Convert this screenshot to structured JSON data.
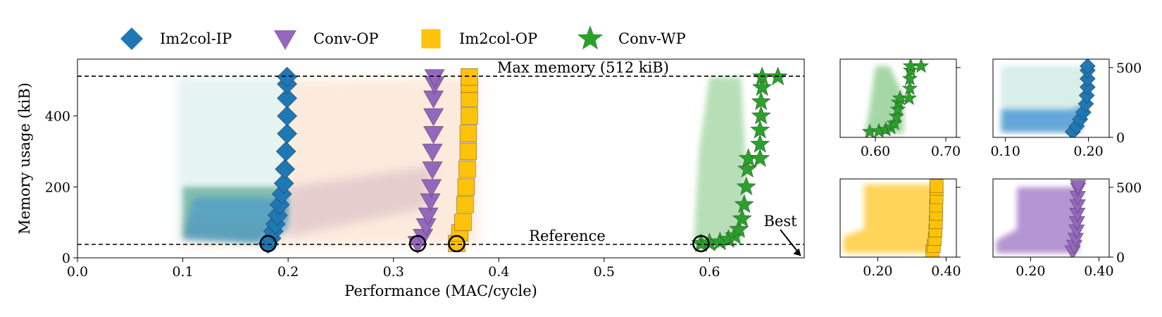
{
  "chart_data": [
    {
      "id": "main",
      "type": "scatter",
      "xlabel": "Performance (MAC/cycle)",
      "ylabel": "Memory usage (kiB)",
      "xlim": [
        0.0,
        0.69
      ],
      "ylim": [
        0,
        560
      ],
      "xticks": [
        0.0,
        0.1,
        0.2,
        0.3,
        0.4,
        0.5,
        0.6
      ],
      "xtick_labels": [
        "0.0",
        "0.1",
        "0.2",
        "0.3",
        "0.4",
        "0.5",
        "0.6"
      ],
      "yticks": [
        0,
        200,
        400
      ],
      "ytick_labels": [
        "0",
        "200",
        "400"
      ],
      "legend": {
        "placement": "top-outside"
      },
      "series": [
        {
          "name": "Im2col-IP",
          "marker": "diamond",
          "color": "#1f77b4",
          "pareto": [
            [
              0.181,
              40
            ],
            [
              0.184,
              55
            ],
            [
              0.186,
              75
            ],
            [
              0.188,
              95
            ],
            [
              0.19,
              120
            ],
            [
              0.192,
              150
            ],
            [
              0.194,
              180
            ],
            [
              0.196,
              210
            ],
            [
              0.197,
              250
            ],
            [
              0.198,
              300
            ],
            [
              0.199,
              350
            ],
            [
              0.199,
              400
            ],
            [
              0.199,
              450
            ],
            [
              0.199,
              490
            ],
            [
              0.199,
              510
            ]
          ]
        },
        {
          "name": "Conv-OP",
          "marker": "triangle-down",
          "color": "#9467bd",
          "pareto": [
            [
              0.323,
              40
            ],
            [
              0.328,
              60
            ],
            [
              0.331,
              90
            ],
            [
              0.333,
              120
            ],
            [
              0.335,
              160
            ],
            [
              0.336,
              200
            ],
            [
              0.337,
              250
            ],
            [
              0.337,
              300
            ],
            [
              0.338,
              350
            ],
            [
              0.338,
              400
            ],
            [
              0.338,
              450
            ],
            [
              0.339,
              490
            ],
            [
              0.339,
              510
            ]
          ]
        },
        {
          "name": "Im2col-OP",
          "marker": "square",
          "color": "#ffc20a",
          "pareto": [
            [
              0.36,
              40
            ],
            [
              0.363,
              70
            ],
            [
              0.366,
              100
            ],
            [
              0.368,
              150
            ],
            [
              0.369,
              200
            ],
            [
              0.37,
              250
            ],
            [
              0.371,
              300
            ],
            [
              0.371,
              350
            ],
            [
              0.372,
              400
            ],
            [
              0.372,
              450
            ],
            [
              0.372,
              490
            ],
            [
              0.372,
              510
            ]
          ]
        },
        {
          "name": "Conv-WP",
          "marker": "star",
          "color": "#2ca02c",
          "pareto": [
            [
              0.592,
              40
            ],
            [
              0.6,
              42
            ],
            [
              0.61,
              45
            ],
            [
              0.618,
              52
            ],
            [
              0.624,
              62
            ],
            [
              0.628,
              80
            ],
            [
              0.631,
              110
            ],
            [
              0.633,
              150
            ],
            [
              0.635,
              200
            ],
            [
              0.636,
              250
            ],
            [
              0.637,
              280
            ],
            [
              0.648,
              280
            ],
            [
              0.648,
              320
            ],
            [
              0.648,
              360
            ],
            [
              0.649,
              400
            ],
            [
              0.649,
              440
            ],
            [
              0.65,
              480
            ],
            [
              0.65,
              510
            ],
            [
              0.665,
              510
            ]
          ]
        }
      ],
      "reference_points": [
        [
          0.181,
          40
        ],
        [
          0.323,
          40
        ],
        [
          0.36,
          40
        ],
        [
          0.592,
          40
        ]
      ],
      "hlines": [
        {
          "y": 512,
          "label": "Max memory (512 kiB)"
        },
        {
          "y": 38,
          "label": "Reference"
        }
      ],
      "annotation": {
        "text": "Best",
        "arrow_to": [
          0.687,
          5
        ]
      }
    },
    {
      "id": "inset-conv-wp",
      "type": "scatter",
      "series_name": "Conv-WP",
      "xlim": [
        0.55,
        0.715
      ],
      "ylim": [
        0,
        560
      ],
      "xticks": [
        0.6,
        0.7
      ],
      "xtick_labels": [
        "0.60",
        "0.70"
      ],
      "yticks": [
        0,
        500
      ],
      "ytick_labels": [
        "",
        ""
      ],
      "pareto": [
        [
          0.592,
          40
        ],
        [
          0.605,
          45
        ],
        [
          0.615,
          55
        ],
        [
          0.622,
          70
        ],
        [
          0.627,
          100
        ],
        [
          0.63,
          150
        ],
        [
          0.632,
          200
        ],
        [
          0.633,
          250
        ],
        [
          0.635,
          280
        ],
        [
          0.648,
          280
        ],
        [
          0.649,
          350
        ],
        [
          0.649,
          420
        ],
        [
          0.65,
          480
        ],
        [
          0.65,
          510
        ],
        [
          0.665,
          510
        ]
      ]
    },
    {
      "id": "inset-im2col-ip",
      "type": "scatter",
      "series_name": "Im2col-IP",
      "xlim": [
        0.085,
        0.225
      ],
      "ylim": [
        0,
        560
      ],
      "xticks": [
        0.1,
        0.2
      ],
      "xtick_labels": [
        "0.10",
        "0.20"
      ],
      "yticks": [
        0,
        500
      ],
      "ytick_labels": [
        "0",
        "500"
      ],
      "pareto": [
        [
          0.181,
          40
        ],
        [
          0.186,
          80
        ],
        [
          0.19,
          130
        ],
        [
          0.194,
          180
        ],
        [
          0.197,
          240
        ],
        [
          0.198,
          300
        ],
        [
          0.199,
          360
        ],
        [
          0.199,
          420
        ],
        [
          0.199,
          480
        ],
        [
          0.199,
          510
        ]
      ]
    },
    {
      "id": "inset-im2col-op",
      "type": "scatter",
      "series_name": "Im2col-OP",
      "xlim": [
        0.09,
        0.43
      ],
      "ylim": [
        0,
        560
      ],
      "xticks": [
        0.2,
        0.4
      ],
      "xtick_labels": [
        "0.20",
        "0.40"
      ],
      "yticks": [
        0,
        500
      ],
      "ytick_labels": [
        "",
        ""
      ],
      "pareto": [
        [
          0.36,
          40
        ],
        [
          0.364,
          80
        ],
        [
          0.367,
          130
        ],
        [
          0.369,
          190
        ],
        [
          0.37,
          250
        ],
        [
          0.371,
          310
        ],
        [
          0.371,
          370
        ],
        [
          0.372,
          430
        ],
        [
          0.372,
          490
        ],
        [
          0.372,
          510
        ]
      ]
    },
    {
      "id": "inset-conv-op",
      "type": "scatter",
      "series_name": "Conv-OP",
      "xlim": [
        0.09,
        0.43
      ],
      "ylim": [
        0,
        560
      ],
      "xticks": [
        0.2,
        0.4
      ],
      "xtick_labels": [
        "0.20",
        "0.40"
      ],
      "yticks": [
        0,
        500
      ],
      "ytick_labels": [
        "0",
        "500"
      ],
      "pareto": [
        [
          0.323,
          40
        ],
        [
          0.328,
          80
        ],
        [
          0.332,
          130
        ],
        [
          0.335,
          190
        ],
        [
          0.336,
          250
        ],
        [
          0.337,
          310
        ],
        [
          0.338,
          370
        ],
        [
          0.338,
          430
        ],
        [
          0.339,
          490
        ],
        [
          0.339,
          510
        ]
      ]
    }
  ]
}
